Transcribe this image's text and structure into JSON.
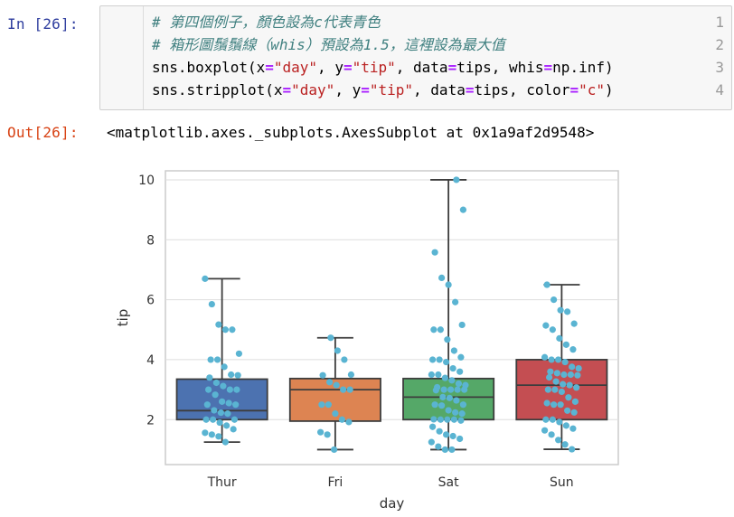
{
  "input_prompt": "In [26]:",
  "output_prompt": "Out[26]:",
  "code_lines": [
    {
      "num": "1",
      "tokens": [
        {
          "t": "# 第四個例子，顏色設為c代表青色",
          "c": "cmt"
        }
      ]
    },
    {
      "num": "2",
      "tokens": [
        {
          "t": "# 箱形圖鬚鬚線（whis）預設為1.5，這裡設為最大值",
          "c": "cmt"
        }
      ]
    },
    {
      "num": "3",
      "tokens": [
        {
          "t": "sns.boxplot(x",
          "c": ""
        },
        {
          "t": "=",
          "c": "op"
        },
        {
          "t": "\"day\"",
          "c": "str"
        },
        {
          "t": ", y",
          "c": ""
        },
        {
          "t": "=",
          "c": "op"
        },
        {
          "t": "\"tip\"",
          "c": "str"
        },
        {
          "t": ", data",
          "c": ""
        },
        {
          "t": "=",
          "c": "op"
        },
        {
          "t": "tips, whis",
          "c": ""
        },
        {
          "t": "=",
          "c": "op"
        },
        {
          "t": "np.inf)",
          "c": ""
        }
      ]
    },
    {
      "num": "4",
      "tokens": [
        {
          "t": "sns.stripplot(x",
          "c": ""
        },
        {
          "t": "=",
          "c": "op"
        },
        {
          "t": "\"day\"",
          "c": "str"
        },
        {
          "t": ", y",
          "c": ""
        },
        {
          "t": "=",
          "c": "op"
        },
        {
          "t": "\"tip\"",
          "c": "str"
        },
        {
          "t": ", data",
          "c": ""
        },
        {
          "t": "=",
          "c": "op"
        },
        {
          "t": "tips, color",
          "c": ""
        },
        {
          "t": "=",
          "c": "op"
        },
        {
          "t": "\"c\"",
          "c": "str"
        },
        {
          "t": ")",
          "c": ""
        }
      ]
    }
  ],
  "output_text": "<matplotlib.axes._subplots.AxesSubplot at 0x1a9af2d9548>",
  "chart_data": {
    "type": "box",
    "xlabel": "day",
    "ylabel": "tip",
    "ylim": [
      0.5,
      10.3
    ],
    "yticks": [
      2,
      4,
      6,
      8,
      10
    ],
    "grid": true,
    "categories": [
      "Thur",
      "Fri",
      "Sat",
      "Sun"
    ],
    "boxes": [
      {
        "name": "Thur",
        "color": "#4c72b0",
        "min": 1.25,
        "q1": 2.0,
        "median": 2.3,
        "q3": 3.35,
        "max": 6.7
      },
      {
        "name": "Fri",
        "color": "#dd8452",
        "min": 1.0,
        "q1": 1.95,
        "median": 3.0,
        "q3": 3.37,
        "max": 4.73
      },
      {
        "name": "Sat",
        "color": "#55a868",
        "min": 1.0,
        "q1": 2.0,
        "median": 2.75,
        "q3": 3.37,
        "max": 10.0
      },
      {
        "name": "Sun",
        "color": "#c44e52",
        "min": 1.01,
        "q1": 2.0,
        "median": 3.15,
        "q3": 4.0,
        "max": 6.5
      }
    ],
    "point_color": "#5ab4d2",
    "points": {
      "Thur": [
        6.7,
        5.85,
        5.17,
        5.0,
        5.0,
        4.2,
        4.0,
        4.0,
        3.76,
        3.5,
        3.48,
        3.4,
        3.23,
        3.12,
        3.0,
        3.0,
        3.0,
        2.83,
        2.6,
        2.55,
        2.5,
        2.5,
        2.31,
        2.23,
        2.2,
        2.0,
        2.0,
        2.0,
        1.9,
        1.8,
        1.68,
        1.56,
        1.5,
        1.44,
        1.25
      ],
      "Fri": [
        4.73,
        4.3,
        4.0,
        3.5,
        3.48,
        3.25,
        3.15,
        3.0,
        3.0,
        2.5,
        2.5,
        2.2,
        2.0,
        1.92,
        1.58,
        1.5,
        1.0
      ],
      "Sat": [
        10.0,
        9.0,
        7.58,
        6.73,
        6.5,
        5.92,
        5.16,
        5.0,
        5.0,
        4.67,
        4.3,
        4.08,
        4.0,
        4.0,
        3.92,
        3.71,
        3.6,
        3.5,
        3.5,
        3.39,
        3.31,
        3.2,
        3.15,
        3.08,
        3.0,
        3.0,
        3.0,
        3.0,
        2.98,
        2.75,
        2.72,
        2.64,
        2.5,
        2.5,
        2.47,
        2.31,
        2.24,
        2.2,
        2.01,
        2.0,
        2.0,
        2.0,
        1.97,
        1.76,
        1.61,
        1.5,
        1.45,
        1.36,
        1.25,
        1.1,
        1.0,
        1.0
      ],
      "Sun": [
        6.5,
        6.0,
        5.65,
        5.6,
        5.2,
        5.14,
        5.0,
        4.71,
        4.5,
        4.34,
        4.08,
        4.0,
        4.0,
        3.92,
        3.76,
        3.71,
        3.6,
        3.55,
        3.5,
        3.5,
        3.48,
        3.41,
        3.27,
        3.18,
        3.15,
        3.07,
        3.0,
        3.0,
        2.93,
        2.74,
        2.6,
        2.55,
        2.5,
        2.5,
        2.3,
        2.24,
        2.0,
        2.0,
        1.92,
        1.8,
        1.7,
        1.64,
        1.5,
        1.32,
        1.17,
        1.01
      ]
    }
  }
}
